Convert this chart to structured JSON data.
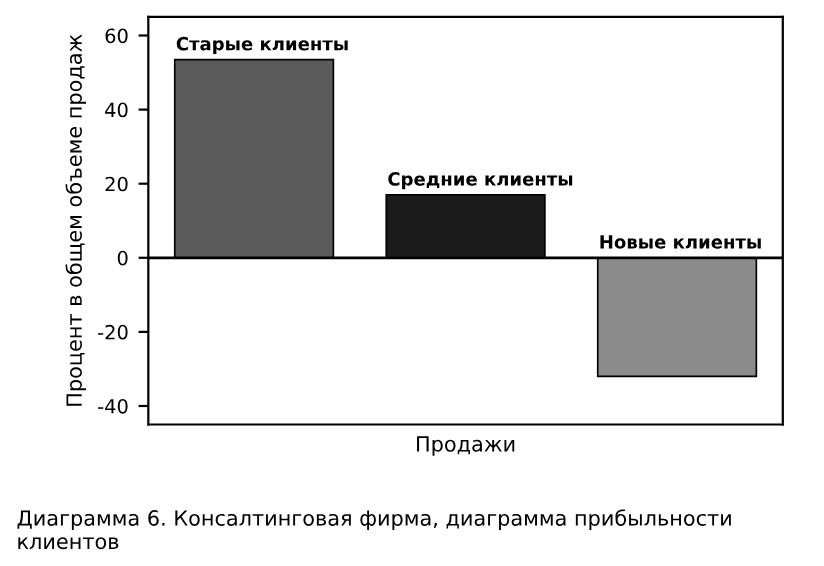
{
  "chart_data": {
    "type": "bar",
    "categories": [
      "Старые клиенты",
      "Средние клиенты",
      "Новые клиенты"
    ],
    "values": [
      53.5,
      17,
      -32
    ],
    "colors": [
      "#5a5a5a",
      "#1c1c1c",
      "#8c8c8c"
    ],
    "ylim": [
      -45,
      65
    ],
    "yticks": [
      -40,
      -20,
      0,
      20,
      40,
      60
    ],
    "xlabel": "Продажи",
    "ylabel": "Процент в общем объеме продаж",
    "tick_labels": "y",
    "ref_lines": [
      {
        "axis": "y",
        "value": 0,
        "color": "#000000"
      }
    ],
    "annotations": [
      "Диаграмма 6. Консалтинговая фирма, диаграмма прибыльности клиентов"
    ]
  }
}
